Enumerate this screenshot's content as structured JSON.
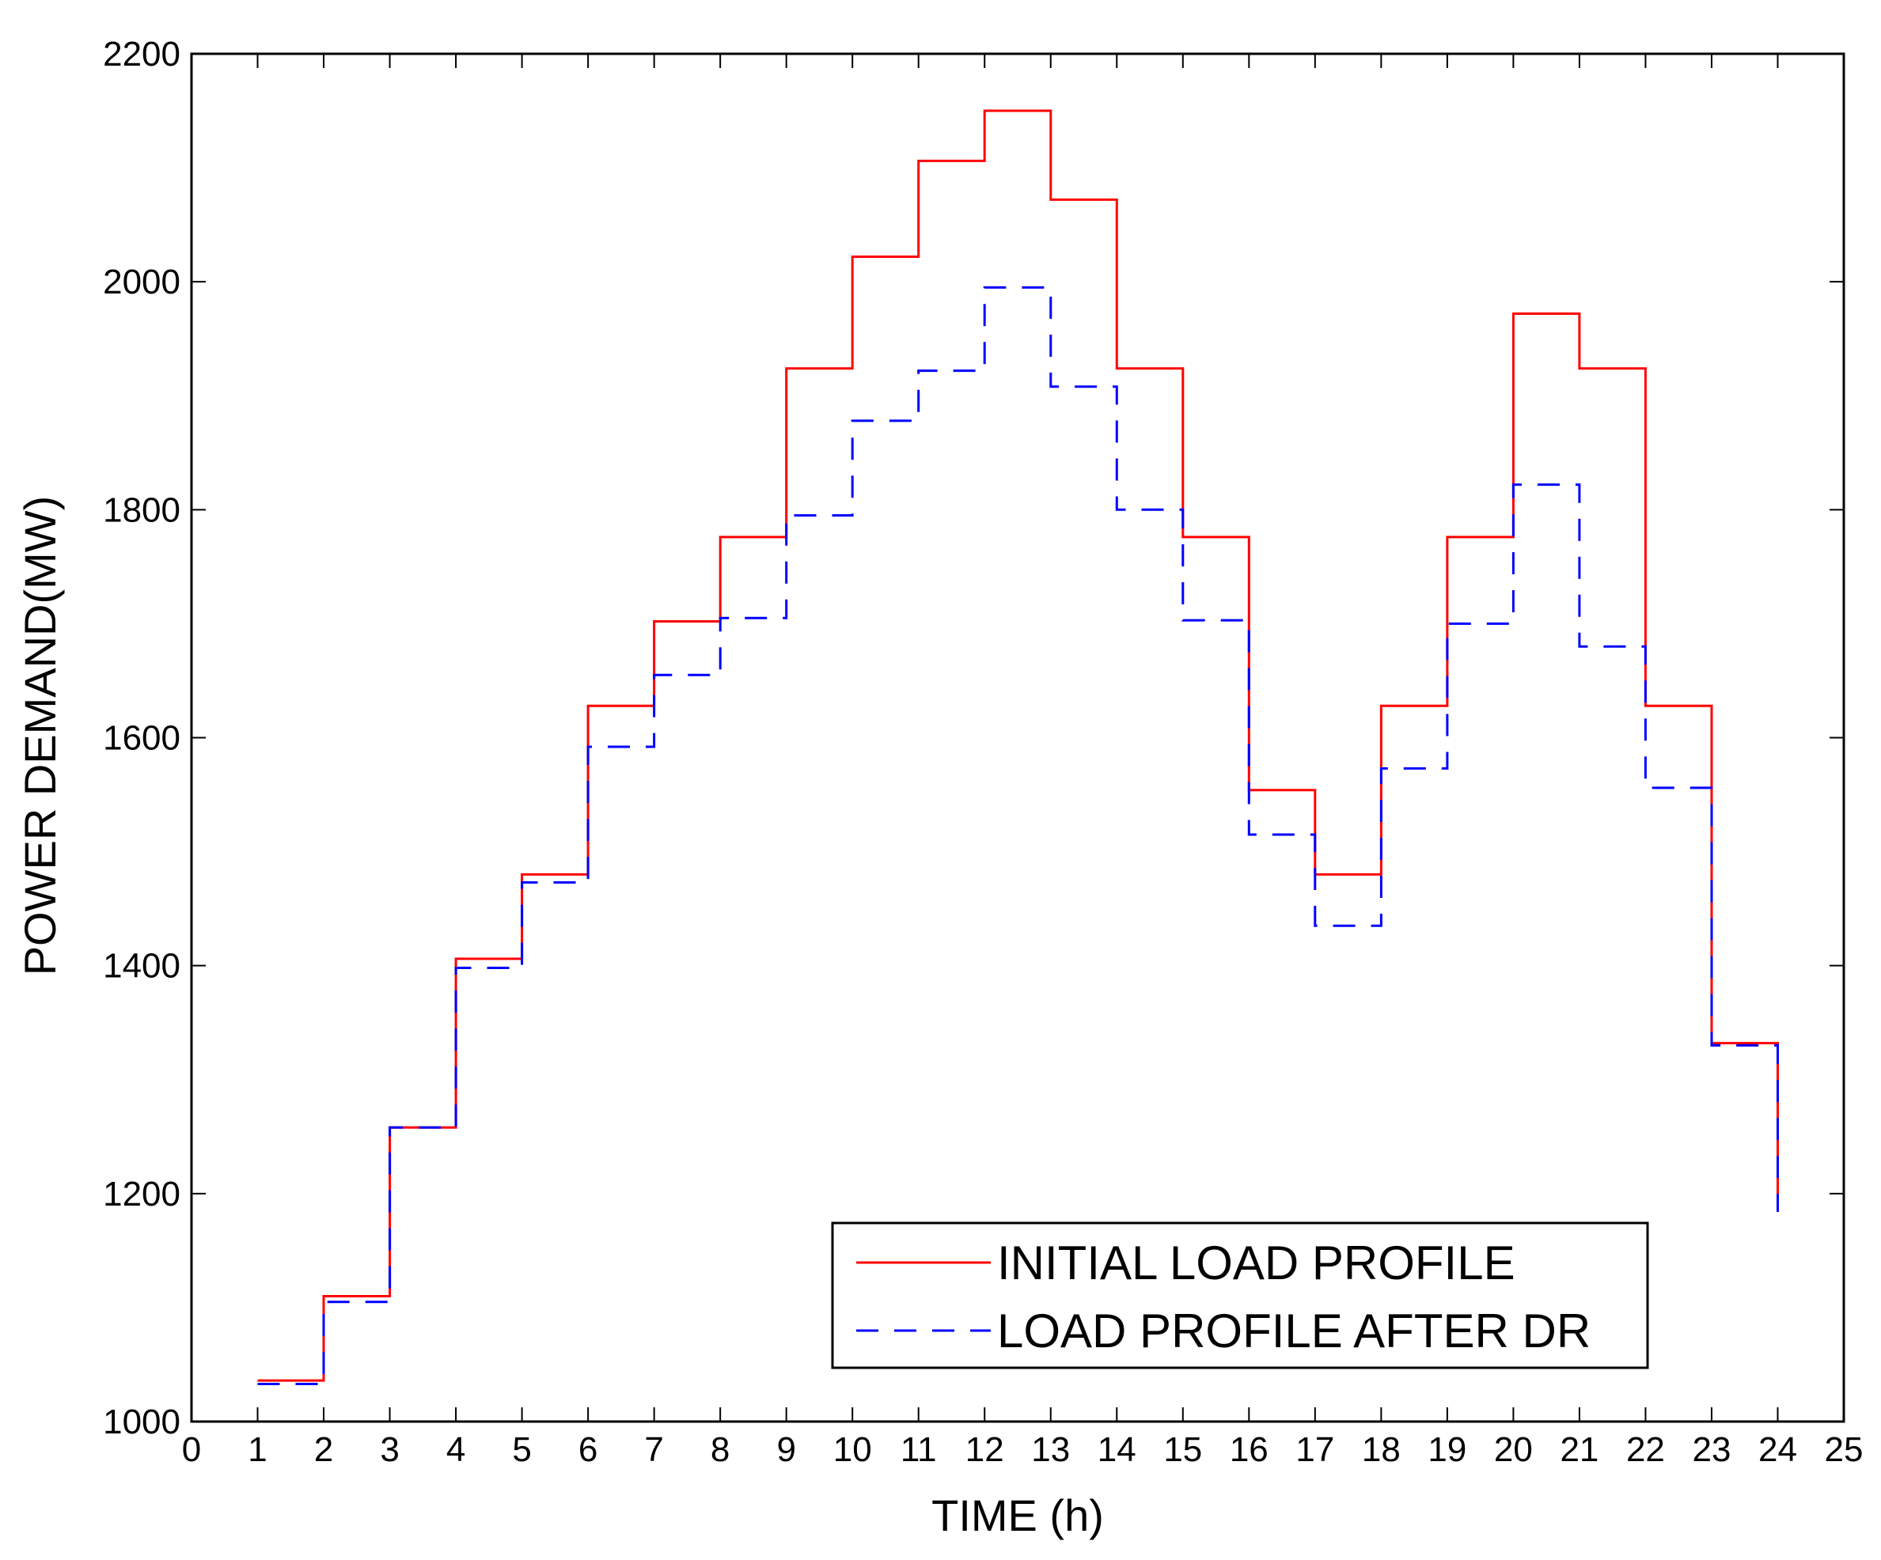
{
  "chart_data": {
    "type": "line",
    "step": "post",
    "title": "",
    "xlabel": "TIME (h)",
    "ylabel": "POWER DEMAND(MW)",
    "xlim": [
      0,
      25
    ],
    "ylim": [
      1000,
      2200
    ],
    "xticks": [
      0,
      1,
      2,
      3,
      4,
      5,
      6,
      7,
      8,
      9,
      10,
      11,
      12,
      13,
      14,
      15,
      16,
      17,
      18,
      19,
      20,
      21,
      22,
      23,
      24,
      25
    ],
    "yticks": [
      1000,
      1200,
      1400,
      1600,
      1800,
      2000,
      2200
    ],
    "grid": false,
    "legend_position": "bottom-right",
    "x": [
      1,
      2,
      3,
      4,
      5,
      6,
      7,
      8,
      9,
      10,
      11,
      12,
      13,
      14,
      15,
      16,
      17,
      18,
      19,
      20,
      21,
      22,
      23,
      24
    ],
    "series": [
      {
        "name": "INITIAL LOAD PROFILE",
        "color": "#ff0000",
        "style": "solid",
        "values": [
          1036,
          1110,
          1258,
          1406,
          1480,
          1628,
          1702,
          1776,
          1924,
          2022,
          2106,
          2150,
          2072,
          1924,
          1776,
          1554,
          1480,
          1628,
          1776,
          1972,
          1924,
          1628,
          1332,
          1184
        ]
      },
      {
        "name": "LOAD PROFILE AFTER DR",
        "color": "#0000ff",
        "style": "dashed",
        "values": [
          1033,
          1105,
          1258,
          1398,
          1473,
          1592,
          1655,
          1705,
          1795,
          1878,
          1922,
          1995,
          1908,
          1800,
          1703,
          1515,
          1435,
          1573,
          1700,
          1822,
          1680,
          1556,
          1330,
          1184
        ]
      }
    ]
  }
}
